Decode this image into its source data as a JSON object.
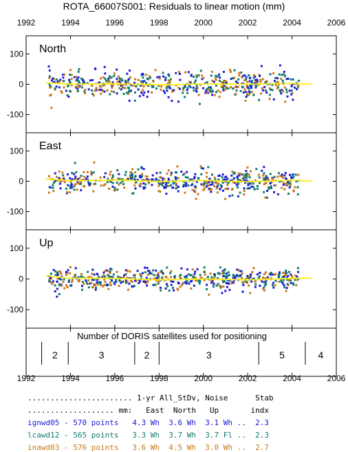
{
  "title": "ROTA_66007S001: Residuals to linear motion (mm)",
  "colors": {
    "ign": "#1a1ad8",
    "lca": "#0e7a6e",
    "ina": "#c8781a",
    "mean": "#f7ee22"
  },
  "chart_data": [
    {
      "type": "scatter",
      "panel": "North",
      "x_ticks": [
        "1992",
        "1994",
        "1996",
        "1998",
        "2000",
        "2002",
        "2004",
        "2006"
      ],
      "xlim": [
        1992,
        2006
      ],
      "ylim": [
        -160,
        160
      ],
      "y_ticks": [
        "100",
        "0",
        "-100"
      ],
      "x_range_data": [
        1993.0,
        2004.3
      ],
      "scatter_sd": 22,
      "mean_curve": {
        "x": [
          1992.9,
          1994,
          1996,
          1998,
          2000,
          2002,
          2004,
          2004.9
        ],
        "y": [
          5,
          0,
          2,
          -2,
          1,
          0,
          3,
          0
        ]
      },
      "series_names": [
        "ignwd05",
        "lcawd12",
        "inawd03"
      ]
    },
    {
      "type": "scatter",
      "panel": "East",
      "x_ticks": [
        "1992",
        "1994",
        "1996",
        "1998",
        "2000",
        "2002",
        "2004",
        "2006"
      ],
      "xlim": [
        1992,
        2006
      ],
      "ylim": [
        -160,
        160
      ],
      "y_ticks": [
        "100",
        "0",
        "-100"
      ],
      "x_range_data": [
        1993.0,
        2004.3
      ],
      "scatter_sd": 20,
      "mean_curve": {
        "x": [
          1992.9,
          1994,
          1996,
          1998,
          2000,
          2002,
          2004,
          2004.9
        ],
        "y": [
          8,
          2,
          4,
          -1,
          3,
          -2,
          4,
          0
        ]
      },
      "series_names": [
        "ignwd05",
        "lcawd12",
        "inawd03"
      ]
    },
    {
      "type": "scatter",
      "panel": "Up",
      "x_ticks": [
        "1992",
        "1994",
        "1996",
        "1998",
        "2000",
        "2002",
        "2004",
        "2006"
      ],
      "xlim": [
        1992,
        2006
      ],
      "ylim": [
        -160,
        160
      ],
      "y_ticks": [
        "100",
        "0",
        "-100"
      ],
      "x_range_data": [
        1993.0,
        2004.3
      ],
      "scatter_sd": 17,
      "mean_curve": {
        "x": [
          1992.9,
          1994,
          1996,
          1998,
          2000,
          2002,
          2004,
          2004.9
        ],
        "y": [
          10,
          3,
          2,
          -3,
          0,
          -3,
          2,
          3
        ]
      },
      "series_names": [
        "ignwd05",
        "lcawd12",
        "inawd03"
      ]
    }
  ],
  "satellites": {
    "title": "Number of DORIS satellites used for positioning",
    "boundaries": [
      1992.7,
      1993.9,
      1996.9,
      1998.0,
      2002.5,
      2004.6
    ],
    "segments": [
      {
        "start": 1992.7,
        "end": 1993.9,
        "count": "2"
      },
      {
        "start": 1993.9,
        "end": 1996.9,
        "count": "3"
      },
      {
        "start": 1996.9,
        "end": 1998.0,
        "count": "2"
      },
      {
        "start": 1998.0,
        "end": 2002.5,
        "count": "3"
      },
      {
        "start": 2002.5,
        "end": 2004.6,
        "count": "5"
      },
      {
        "start": 2004.6,
        "end": 2006.0,
        "count": "4"
      }
    ]
  },
  "stats": {
    "header1": "....................... 1-yr All_StDv, Noise      Stab",
    "header2": "................... mm:   East  North   Up       indx",
    "rows": [
      {
        "text": "ignwd05 - 570 points   4.3 Wh  3.6 Wh  3.1 Wh ..  2.3",
        "color": "#1a1ad8"
      },
      {
        "text": "lcawd12 - 565 points   3.3 Wh  3.7 Wh  3.7 Fl ..  2.3",
        "color": "#0e7a6e"
      },
      {
        "text": "inawd03 - 576 points   3.6 Wh  4.5 Wh  3.0 Wh ..  2.7",
        "color": "#c8781a"
      }
    ]
  }
}
